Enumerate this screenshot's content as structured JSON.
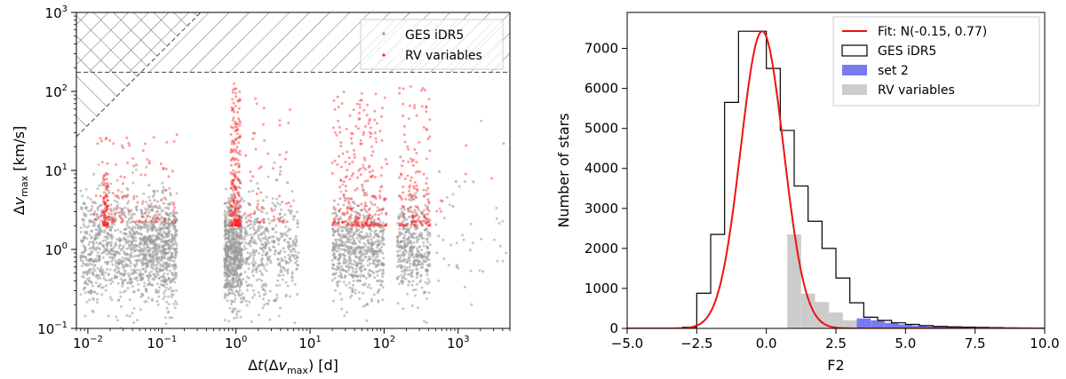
{
  "chart_data": [
    {
      "type": "scatter",
      "xscale": "log",
      "yscale": "log",
      "xlim": [
        0.007,
        5000
      ],
      "ylim": [
        0.1,
        1000
      ],
      "xlabel": "Δt(Δv_max) [d]",
      "ylabel": "Δv_max [km/s]",
      "x_ticks": [
        {
          "value": 0.01,
          "base": "10",
          "exp": "−2"
        },
        {
          "value": 0.1,
          "base": "10",
          "exp": "−1"
        },
        {
          "value": 1,
          "base": "10",
          "exp": "0"
        },
        {
          "value": 10,
          "base": "10",
          "exp": "1"
        },
        {
          "value": 100,
          "base": "10",
          "exp": "2"
        },
        {
          "value": 1000,
          "base": "10",
          "exp": "3"
        }
      ],
      "y_ticks": [
        {
          "value": 0.1,
          "base": "10",
          "exp": "−1"
        },
        {
          "value": 1,
          "base": "10",
          "exp": "0"
        },
        {
          "value": 10,
          "base": "10",
          "exp": "1"
        },
        {
          "value": 100,
          "base": "10",
          "exp": "2"
        },
        {
          "value": 1000,
          "base": "10",
          "exp": "3"
        }
      ],
      "excluded_region_threshold": 175,
      "legend": {
        "position": "upper right",
        "entries": [
          {
            "label": "GES iDR5",
            "color": "#999999"
          },
          {
            "label": "RV variables",
            "color": "#ff2222"
          }
        ]
      },
      "series": [
        {
          "name": "GES iDR5",
          "color": "#999999",
          "clusters": [
            {
              "x_range": [
                0.008,
                0.012
              ],
              "y_center": 1.0,
              "y_spread": 0.35,
              "count": 160
            },
            {
              "x_range": [
                0.012,
                0.05
              ],
              "y_center": 1.0,
              "y_spread": 0.35,
              "count": 520
            },
            {
              "x_range": [
                0.05,
                0.16
              ],
              "y_center": 1.0,
              "y_spread": 0.33,
              "count": 700
            },
            {
              "x_range": [
                0.7,
                1.2
              ],
              "y_center": 0.9,
              "y_spread": 0.35,
              "count": 650
            },
            {
              "x_range": [
                1.2,
                7
              ],
              "y_center": 1.0,
              "y_spread": 0.35,
              "count": 420
            },
            {
              "x_range": [
                20,
                100
              ],
              "y_center": 1.0,
              "y_spread": 0.3,
              "count": 620
            },
            {
              "x_range": [
                150,
                420
              ],
              "y_center": 1.0,
              "y_spread": 0.3,
              "count": 380
            },
            {
              "x_range": [
                500,
                4500
              ],
              "y_center": 1.3,
              "y_spread": 0.4,
              "count": 40
            }
          ]
        },
        {
          "name": "RV variables",
          "color": "#ff2222",
          "clusters": [
            {
              "x_range": [
                0.016,
                0.019
              ],
              "y_min": 2,
              "y_max": 10,
              "count": 80
            },
            {
              "x_range": [
                0.012,
                0.16
              ],
              "y_min": 2.2,
              "y_max": 30,
              "count": 120
            },
            {
              "x_range": [
                0.85,
                1.15
              ],
              "y_min": 2,
              "y_max": 140,
              "count": 220
            },
            {
              "x_range": [
                1.3,
                6
              ],
              "y_min": 2.2,
              "y_max": 100,
              "count": 60
            },
            {
              "x_range": [
                20,
                110
              ],
              "y_min": 2,
              "y_max": 100,
              "count": 260
            },
            {
              "x_range": [
                160,
                420
              ],
              "y_min": 2,
              "y_max": 120,
              "count": 150
            },
            {
              "x_range": [
                500,
                4500
              ],
              "y_min": 3,
              "y_max": 30,
              "count": 12
            }
          ]
        }
      ]
    },
    {
      "type": "bar",
      "xlabel": "F2",
      "ylabel": "Number of stars",
      "xlim": [
        -5,
        10
      ],
      "ylim": [
        0,
        7900
      ],
      "x_ticks": [
        -5.0,
        -2.5,
        0.0,
        2.5,
        5.0,
        7.5,
        10.0
      ],
      "x_tick_labels": [
        "−5.0",
        "−2.5",
        "0.0",
        "2.5",
        "5.0",
        "7.5",
        "10.0"
      ],
      "y_ticks": [
        0,
        1000,
        2000,
        3000,
        4000,
        5000,
        6000,
        7000
      ],
      "y_tick_labels": [
        "0",
        "1000",
        "2000",
        "3000",
        "4000",
        "5000",
        "6000",
        "7000"
      ],
      "bin_width": 0.5,
      "bins_start": -3.0,
      "ges_idr5": [
        30,
        880,
        2350,
        5650,
        7430,
        7430,
        6500,
        4950,
        3560,
        2680,
        2000,
        1260,
        640,
        280,
        200,
        140,
        100,
        70,
        50,
        40,
        30,
        25,
        20,
        15,
        12,
        10
      ],
      "set2": {
        "x_start": 3.25,
        "values": [
          250,
          200,
          140,
          100,
          70,
          50,
          40,
          30,
          25,
          20,
          15,
          12,
          10
        ]
      },
      "rv_variables": [
        {
          "x0": 0.75,
          "x1": 1.25,
          "value": 2350
        },
        {
          "x0": 1.25,
          "x1": 1.75,
          "value": 870
        },
        {
          "x0": 1.75,
          "x1": 2.25,
          "value": 660
        },
        {
          "x0": 2.25,
          "x1": 2.75,
          "value": 400
        },
        {
          "x0": 2.75,
          "x1": 3.25,
          "value": 200
        }
      ],
      "fit": {
        "mu": -0.15,
        "sigma": 0.77,
        "peak": 7430,
        "color": "#ee1111",
        "label": "Fit: N(-0.15, 0.77)"
      },
      "legend": {
        "position": "upper right",
        "entries": [
          {
            "label": "Fit: N(-0.15, 0.77)",
            "kind": "line",
            "color": "#ee1111"
          },
          {
            "label": "GES iDR5",
            "kind": "outline",
            "color": "#000000"
          },
          {
            "label": "set 2",
            "kind": "fill",
            "color": "#7a7af0"
          },
          {
            "label": "RV variables",
            "kind": "fill",
            "color": "#cccccc"
          }
        ]
      }
    }
  ]
}
